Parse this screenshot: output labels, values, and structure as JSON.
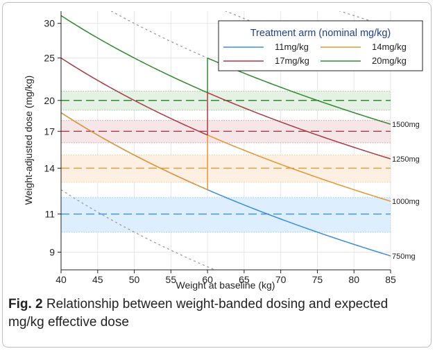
{
  "caption": {
    "label": "Fig. 2",
    "text": " Relationship between weight-banded dosing and expected mg/kg effective dose"
  },
  "chart_data": {
    "type": "line",
    "xlabel": "Weight at baseline (kg)",
    "ylabel": "Weight-adjusted dose (mg/kg)",
    "xlim": [
      40,
      85
    ],
    "ylim": [
      8.2,
      32
    ],
    "y_scale": "log",
    "x_ticks": [
      40,
      45,
      50,
      55,
      60,
      65,
      70,
      75,
      80,
      85
    ],
    "y_ticks": [
      9,
      11,
      14,
      17,
      20,
      25,
      30
    ],
    "grid": true,
    "legend": {
      "title": "Treatment arm (nominal mg/kg)",
      "position": "top-right",
      "entries": [
        "11mg/kg",
        "14mg/kg",
        "17mg/kg",
        "20mg/kg"
      ]
    },
    "series": [
      {
        "name": "11mg/kg",
        "color": "#3b8fde",
        "segments": [
          {
            "dose_mg": 750,
            "x": [
              40,
              60
            ]
          },
          {
            "dose_mg": 750,
            "x": [
              60,
              85
            ]
          }
        ]
      },
      {
        "name": "14mg/kg",
        "color": "#e8962e",
        "segments": [
          {
            "dose_mg": 750,
            "x": [
              40,
              60
            ]
          },
          {
            "dose_mg": 1000,
            "x": [
              60,
              85
            ]
          }
        ]
      },
      {
        "name": "17mg/kg",
        "color": "#a93a46",
        "segments": [
          {
            "dose_mg": 1000,
            "x": [
              40,
              60
            ]
          },
          {
            "dose_mg": 1250,
            "x": [
              60,
              85
            ]
          }
        ]
      },
      {
        "name": "20mg/kg",
        "color": "#2e8b2e",
        "segments": [
          {
            "dose_mg": 1250,
            "x": [
              40,
              60
            ]
          },
          {
            "dose_mg": 1500,
            "x": [
              60,
              85
            ]
          }
        ]
      }
    ],
    "target_bands": [
      {
        "target": 11,
        "low": 10,
        "high": 12,
        "color": "#3b8fde",
        "fill": "#ddeeff"
      },
      {
        "target": 14,
        "low": 13,
        "high": 15,
        "color": "#e8962e",
        "fill": "#fdf0e2"
      },
      {
        "target": 17,
        "low": 16,
        "high": 18,
        "color": "#a93a46",
        "fill": "#f6e6e8"
      },
      {
        "target": 20,
        "low": 19,
        "high": 21,
        "color": "#2e8b2e",
        "fill": "#e4f1e4"
      }
    ],
    "reference_doses": [
      {
        "dose_mg": 500,
        "label": ""
      },
      {
        "dose_mg": 750,
        "label": "750mg"
      },
      {
        "dose_mg": 1000,
        "label": "1000mg"
      },
      {
        "dose_mg": 1250,
        "label": "1250mg"
      },
      {
        "dose_mg": 1500,
        "label": "1500mg"
      },
      {
        "dose_mg": 2000,
        "label": ""
      },
      {
        "dose_mg": 2500,
        "label": ""
      }
    ]
  }
}
